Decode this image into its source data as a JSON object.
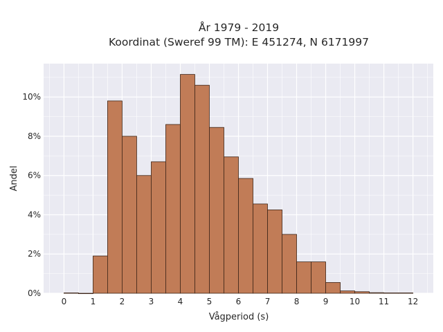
{
  "chart_data": {
    "type": "bar",
    "title": "År 1979 - 2019",
    "subtitle": "Koordinat (Sweref 99 TM): E 451274, N 6171997",
    "xlabel": "Vågperiod (s)",
    "ylabel": "Andel",
    "xlim": [
      -0.7,
      12.7
    ],
    "ylim": [
      0,
      11.7
    ],
    "x_ticks": [
      0,
      1,
      2,
      3,
      4,
      5,
      6,
      7,
      8,
      9,
      10,
      11,
      12
    ],
    "y_ticks": [
      0,
      2,
      4,
      6,
      8,
      10
    ],
    "y_tick_labels": [
      "0%",
      "2%",
      "4%",
      "6%",
      "8%",
      "10%"
    ],
    "bin_width": 0.5,
    "bins": [
      {
        "start": 0.0,
        "value": 0.02
      },
      {
        "start": 0.5,
        "value": 0.0
      },
      {
        "start": 1.0,
        "value": 1.9
      },
      {
        "start": 1.5,
        "value": 9.8
      },
      {
        "start": 2.0,
        "value": 8.0
      },
      {
        "start": 2.5,
        "value": 6.0
      },
      {
        "start": 3.0,
        "value": 6.7
      },
      {
        "start": 3.5,
        "value": 8.6
      },
      {
        "start": 4.0,
        "value": 11.15
      },
      {
        "start": 4.5,
        "value": 10.6
      },
      {
        "start": 5.0,
        "value": 8.45
      },
      {
        "start": 5.5,
        "value": 6.95
      },
      {
        "start": 6.0,
        "value": 5.85
      },
      {
        "start": 6.5,
        "value": 4.55
      },
      {
        "start": 7.0,
        "value": 4.25
      },
      {
        "start": 7.5,
        "value": 3.0
      },
      {
        "start": 8.0,
        "value": 1.6
      },
      {
        "start": 8.5,
        "value": 1.6
      },
      {
        "start": 9.0,
        "value": 0.55
      },
      {
        "start": 9.5,
        "value": 0.12
      },
      {
        "start": 10.0,
        "value": 0.08
      },
      {
        "start": 10.5,
        "value": 0.03
      },
      {
        "start": 11.0,
        "value": 0.02
      },
      {
        "start": 11.5,
        "value": 0.02
      }
    ],
    "grid": true,
    "colors": {
      "bar_fill": "#c17c57",
      "bar_edge": "#3d2518",
      "plot_background": "#eaeaf2",
      "grid": "#ffffff"
    }
  }
}
